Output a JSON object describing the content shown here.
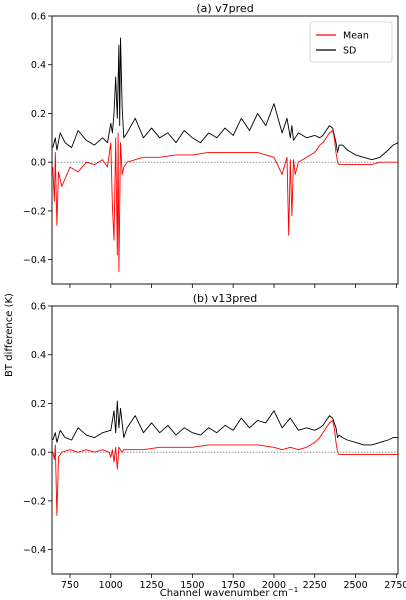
{
  "figure": {
    "ylabel": "BT difference (K)",
    "xlabel": "Channel wavenumber cm",
    "xlabel_sup": "−1"
  },
  "chart_data": [
    {
      "type": "line",
      "title": "(a) v7pred",
      "xlim": [
        640,
        2760
      ],
      "ylim": [
        -0.5,
        0.6
      ],
      "xticks": [
        750,
        1000,
        1250,
        1500,
        1750,
        2000,
        2250,
        2500,
        2750
      ],
      "yticks": [
        -0.4,
        -0.2,
        0.0,
        0.2,
        0.4,
        0.6
      ],
      "ytick_labels": [
        "−0.4",
        "−0.2",
        "0.0",
        "0.2",
        "0.4",
        "0.6"
      ],
      "show_xtick_labels": false,
      "legend": {
        "placement": "top-right",
        "entries": [
          "Mean",
          "SD"
        ]
      },
      "zero_line": true,
      "series": [
        {
          "name": "SD",
          "color": "#000000",
          "x": [
            645,
            660,
            670,
            690,
            720,
            760,
            800,
            850,
            900,
            950,
            980,
            1000,
            1010,
            1020,
            1030,
            1040,
            1050,
            1055,
            1060,
            1070,
            1080,
            1100,
            1150,
            1200,
            1250,
            1300,
            1350,
            1400,
            1450,
            1500,
            1550,
            1600,
            1650,
            1700,
            1750,
            1800,
            1850,
            1900,
            1950,
            2000,
            2050,
            2080,
            2100,
            2110,
            2120,
            2150,
            2200,
            2250,
            2280,
            2300,
            2320,
            2340,
            2360,
            2380,
            2390,
            2400,
            2420,
            2450,
            2500,
            2550,
            2600,
            2650,
            2700,
            2730,
            2760
          ],
          "y": [
            0.06,
            0.1,
            0.05,
            0.12,
            0.08,
            0.06,
            0.13,
            0.09,
            0.07,
            0.1,
            0.08,
            0.16,
            0.12,
            0.2,
            0.35,
            0.18,
            0.48,
            0.15,
            0.51,
            0.22,
            0.1,
            0.12,
            0.18,
            0.1,
            0.14,
            0.1,
            0.12,
            0.08,
            0.13,
            0.1,
            0.08,
            0.12,
            0.1,
            0.14,
            0.11,
            0.18,
            0.13,
            0.2,
            0.15,
            0.24,
            0.12,
            0.18,
            0.1,
            0.15,
            0.09,
            0.12,
            0.1,
            0.11,
            0.1,
            0.11,
            0.13,
            0.15,
            0.14,
            0.08,
            0.04,
            0.07,
            0.07,
            0.05,
            0.03,
            0.02,
            0.01,
            0.02,
            0.05,
            0.07,
            0.08
          ]
        },
        {
          "name": "Mean",
          "color": "#ff0000",
          "x": [
            645,
            655,
            660,
            670,
            680,
            700,
            750,
            800,
            850,
            900,
            950,
            980,
            1000,
            1010,
            1020,
            1030,
            1040,
            1045,
            1050,
            1060,
            1070,
            1080,
            1100,
            1150,
            1200,
            1300,
            1400,
            1500,
            1600,
            1700,
            1800,
            1900,
            1950,
            2000,
            2050,
            2080,
            2090,
            2100,
            2110,
            2120,
            2130,
            2150,
            2200,
            2250,
            2280,
            2300,
            2320,
            2340,
            2360,
            2370,
            2380,
            2390,
            2400,
            2450,
            2500,
            2550,
            2600,
            2650,
            2700,
            2730,
            2760
          ],
          "y": [
            -0.02,
            -0.16,
            0.04,
            -0.26,
            -0.04,
            -0.1,
            -0.02,
            -0.04,
            0.0,
            -0.01,
            0.01,
            -0.02,
            0.08,
            -0.18,
            -0.32,
            0.1,
            -0.38,
            0.12,
            -0.45,
            0.08,
            -0.05,
            -0.02,
            0.0,
            0.01,
            0.02,
            0.02,
            0.03,
            0.03,
            0.04,
            0.04,
            0.04,
            0.04,
            0.03,
            0.02,
            -0.05,
            0.02,
            -0.3,
            0.01,
            -0.22,
            0.01,
            -0.05,
            0.0,
            0.02,
            0.04,
            0.07,
            0.08,
            0.1,
            0.12,
            0.13,
            0.1,
            0.04,
            0.0,
            -0.01,
            -0.01,
            -0.01,
            -0.01,
            -0.01,
            0.0,
            0.0,
            0.0,
            0.0
          ]
        }
      ]
    },
    {
      "type": "line",
      "title": "(b) v13pred",
      "xlim": [
        640,
        2760
      ],
      "ylim": [
        -0.5,
        0.6
      ],
      "xticks": [
        750,
        1000,
        1250,
        1500,
        1750,
        2000,
        2250,
        2500,
        2750
      ],
      "xtick_labels": [
        "750",
        "1000",
        "1250",
        "1500",
        "1750",
        "2000",
        "2250",
        "2500",
        "2750"
      ],
      "yticks": [
        -0.4,
        -0.2,
        0.0,
        0.2,
        0.4,
        0.6
      ],
      "ytick_labels": [
        "−0.4",
        "−0.2",
        "0.0",
        "0.2",
        "0.4",
        "0.6"
      ],
      "show_xtick_labels": true,
      "zero_line": true,
      "series": [
        {
          "name": "SD",
          "color": "#000000",
          "x": [
            645,
            660,
            670,
            690,
            720,
            760,
            800,
            850,
            900,
            950,
            1000,
            1020,
            1030,
            1040,
            1050,
            1060,
            1080,
            1100,
            1150,
            1200,
            1250,
            1300,
            1350,
            1400,
            1450,
            1500,
            1550,
            1600,
            1650,
            1700,
            1750,
            1800,
            1850,
            1900,
            1950,
            2000,
            2050,
            2100,
            2150,
            2200,
            2250,
            2280,
            2300,
            2320,
            2340,
            2360,
            2380,
            2390,
            2400,
            2420,
            2450,
            2500,
            2550,
            2600,
            2650,
            2700,
            2730,
            2760
          ],
          "y": [
            0.05,
            0.08,
            0.04,
            0.09,
            0.06,
            0.05,
            0.1,
            0.07,
            0.06,
            0.08,
            0.09,
            0.17,
            0.08,
            0.21,
            0.1,
            0.18,
            0.06,
            0.1,
            0.15,
            0.08,
            0.12,
            0.08,
            0.11,
            0.07,
            0.1,
            0.08,
            0.07,
            0.1,
            0.08,
            0.11,
            0.09,
            0.14,
            0.1,
            0.13,
            0.12,
            0.17,
            0.1,
            0.14,
            0.09,
            0.1,
            0.09,
            0.1,
            0.11,
            0.13,
            0.15,
            0.14,
            0.1,
            0.06,
            0.07,
            0.06,
            0.05,
            0.04,
            0.03,
            0.03,
            0.04,
            0.05,
            0.06,
            0.06
          ]
        },
        {
          "name": "Mean",
          "color": "#ff0000",
          "x": [
            645,
            655,
            660,
            670,
            680,
            700,
            750,
            800,
            850,
            900,
            950,
            990,
            1000,
            1010,
            1020,
            1030,
            1040,
            1050,
            1060,
            1070,
            1080,
            1100,
            1200,
            1300,
            1400,
            1500,
            1600,
            1700,
            1800,
            1900,
            2000,
            2050,
            2100,
            2150,
            2200,
            2250,
            2280,
            2300,
            2320,
            2340,
            2360,
            2370,
            2380,
            2390,
            2400,
            2450,
            2500,
            2550,
            2600,
            2650,
            2700,
            2730,
            2760
          ],
          "y": [
            0.0,
            -0.03,
            0.03,
            -0.26,
            -0.02,
            0.0,
            0.01,
            0.0,
            0.01,
            0.0,
            0.01,
            0.0,
            -0.02,
            0.01,
            -0.04,
            0.02,
            -0.07,
            0.02,
            0.01,
            0.0,
            0.01,
            0.01,
            0.01,
            0.02,
            0.02,
            0.02,
            0.03,
            0.03,
            0.03,
            0.03,
            0.02,
            0.01,
            0.02,
            0.01,
            0.02,
            0.04,
            0.06,
            0.08,
            0.1,
            0.12,
            0.13,
            0.1,
            0.04,
            0.0,
            -0.01,
            -0.01,
            -0.01,
            -0.01,
            -0.01,
            -0.01,
            -0.01,
            -0.01,
            -0.01
          ]
        }
      ]
    }
  ]
}
